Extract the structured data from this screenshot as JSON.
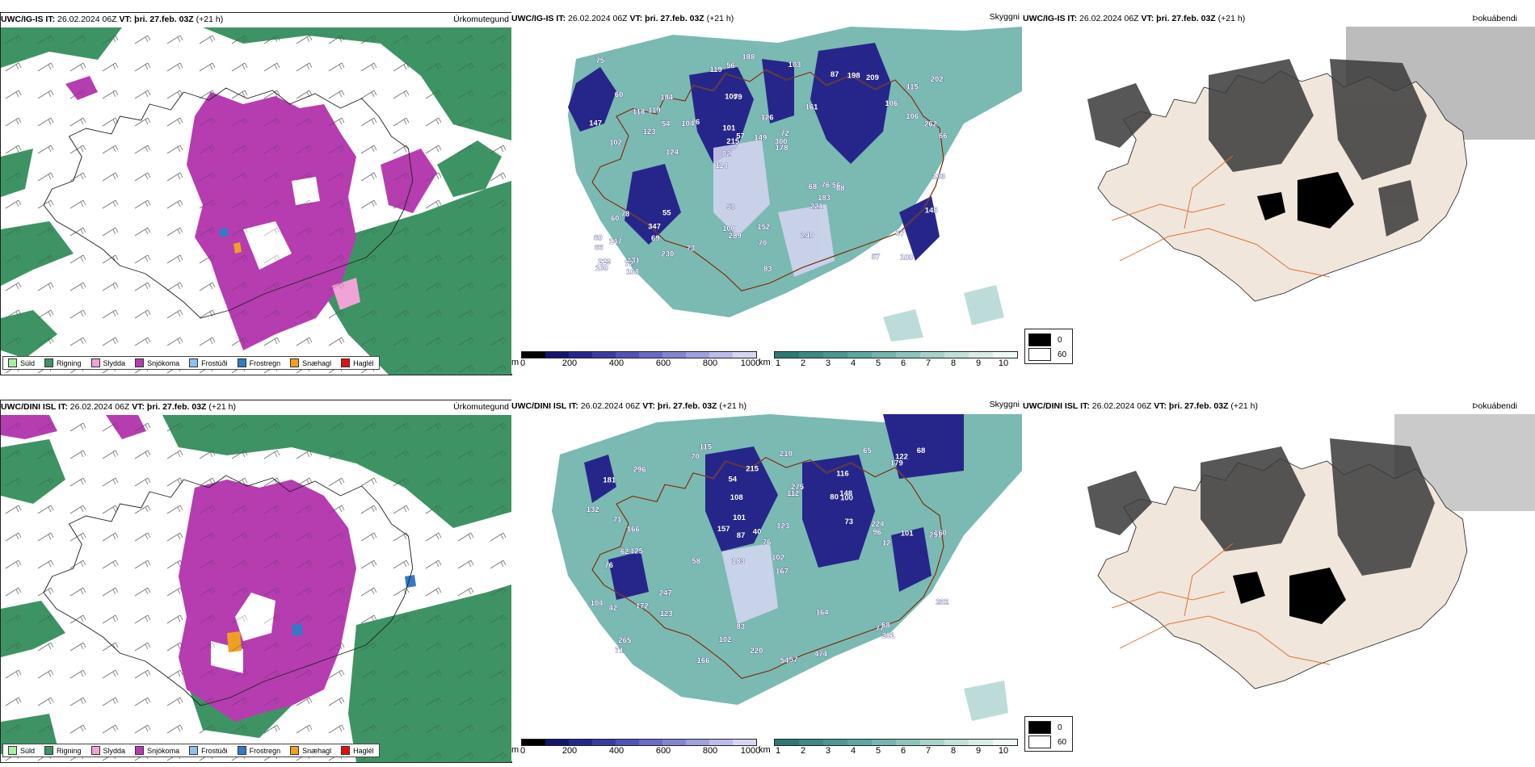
{
  "colors": {
    "rain": "#3e9364",
    "snow": "#b53db0",
    "sleet": "#f0a3d6",
    "drizzle": "#a8f0a0",
    "freezing_drizzle": "#8fc0ef",
    "freezing_rain": "#3478c6",
    "snow_grains": "#f0a020",
    "hail": "#e01010",
    "ceiling_dark": "#14146e",
    "ceiling_light": "#d6d6f2",
    "visibility": "#5aa8a0",
    "roads": "#e06828",
    "land": "#f0e6dc"
  },
  "panels": {
    "row1": {
      "precip": {
        "model": "UWC/IG-IS",
        "it_label": "IT:",
        "it_value": "26.02.2024 06Z",
        "vt_label": "VT:",
        "vt_value": "þri. 27.feb. 03Z",
        "lead": "(+21 h)",
        "kind": "Úrkomutegund"
      },
      "cloud": {
        "model": "UWC/IG-IS",
        "it_label": "IT:",
        "it_value": "26.02.2024 06Z",
        "vt_label": "VT:",
        "vt_value": "þri. 27.feb. 03Z",
        "lead": "(+21 h)",
        "kind": "Skyggni",
        "ceiling_labels": [
          "100",
          "102",
          "115",
          "114",
          "161",
          "131",
          "105",
          "126",
          "78",
          "76",
          "66",
          "69",
          "79",
          "72",
          "68",
          "60",
          "56",
          "66",
          "68",
          "106",
          "82",
          "100",
          "215",
          "184",
          "87",
          "55",
          "57",
          "67",
          "56",
          "83",
          "104",
          "123",
          "221",
          "230",
          "262",
          "300",
          "229",
          "289",
          "178",
          "60",
          "106",
          "202",
          "183",
          "240",
          "347",
          "168",
          "160",
          "152",
          "209",
          "188",
          "124",
          "147",
          "119",
          "198",
          "72",
          "103",
          "119",
          "57",
          "145",
          "50",
          "73",
          "76",
          "54",
          "60",
          "75",
          "118",
          "133",
          "101",
          "70",
          "149",
          "147"
        ]
      },
      "fog": {
        "model": "UWC/IG-IS",
        "it_label": "IT:",
        "it_value": "26.02.2024 06Z",
        "vt_label": "VT:",
        "vt_value": "þri. 27.feb. 03Z",
        "lead": "(+21 h)",
        "kind": "Þokuábendi"
      }
    },
    "row2": {
      "precip": {
        "model": "UWC/DINI ISL",
        "it_label": "IT:",
        "it_value": "26.02.2024 06Z",
        "vt_label": "VT:",
        "vt_value": "þri. 27.feb. 03Z",
        "lead": "(+21 h)",
        "kind": "Úrkomutegund"
      },
      "cloud": {
        "model": "UWC/DINI ISL",
        "it_label": "IT:",
        "it_value": "26.02.2024 06Z",
        "vt_label": "VT:",
        "vt_value": "þri. 27.feb. 03Z",
        "lead": "(+21 h)",
        "kind": "Skyggni",
        "ceiling_labels": [
          "115",
          "116",
          "251",
          "183",
          "167",
          "125",
          "181",
          "80",
          "76",
          "112",
          "76",
          "71",
          "70",
          "58",
          "54",
          "57",
          "83",
          "65",
          "73",
          "247",
          "166",
          "62",
          "160",
          "101",
          "104",
          "71",
          "87",
          "96",
          "58",
          "42",
          "77",
          "275",
          "172",
          "157",
          "164",
          "282",
          "224",
          "102",
          "68",
          "215",
          "265",
          "166",
          "474",
          "296",
          "220",
          "100",
          "281",
          "148",
          "132",
          "102",
          "54",
          "12",
          "123",
          "179",
          "210",
          "123",
          "101",
          "40",
          "122",
          "108"
        ]
      },
      "fog": {
        "model": "UWC/DINI ISL",
        "it_label": "IT:",
        "it_value": "26.02.2024 06Z",
        "vt_label": "VT:",
        "vt_value": "þri. 27.feb. 03Z",
        "lead": "(+21 h)",
        "kind": "Þokuábendi"
      }
    }
  },
  "legend": {
    "precip_types": [
      {
        "label": "Súld",
        "color": "#a8f0a0"
      },
      {
        "label": "Rigning",
        "color": "#3e9364"
      },
      {
        "label": "Slydda",
        "color": "#f0a3d6"
      },
      {
        "label": "Snjókoma",
        "color": "#b53db0"
      },
      {
        "label": "Frostúði",
        "color": "#8fc0ef"
      },
      {
        "label": "Frostregn",
        "color": "#3478c6"
      },
      {
        "label": "Snæhagl",
        "color": "#f0a020"
      },
      {
        "label": "Haglél",
        "color": "#e01010"
      }
    ],
    "ceiling": {
      "unit": "m",
      "ticks": [
        "0",
        "200",
        "400",
        "600",
        "800",
        "1000"
      ]
    },
    "visibility": {
      "unit": "km",
      "ticks": [
        "1",
        "2",
        "3",
        "4",
        "5",
        "6",
        "7",
        "8",
        "9",
        "10"
      ]
    },
    "fog": {
      "dark_label": "0",
      "light_label": "60"
    }
  }
}
